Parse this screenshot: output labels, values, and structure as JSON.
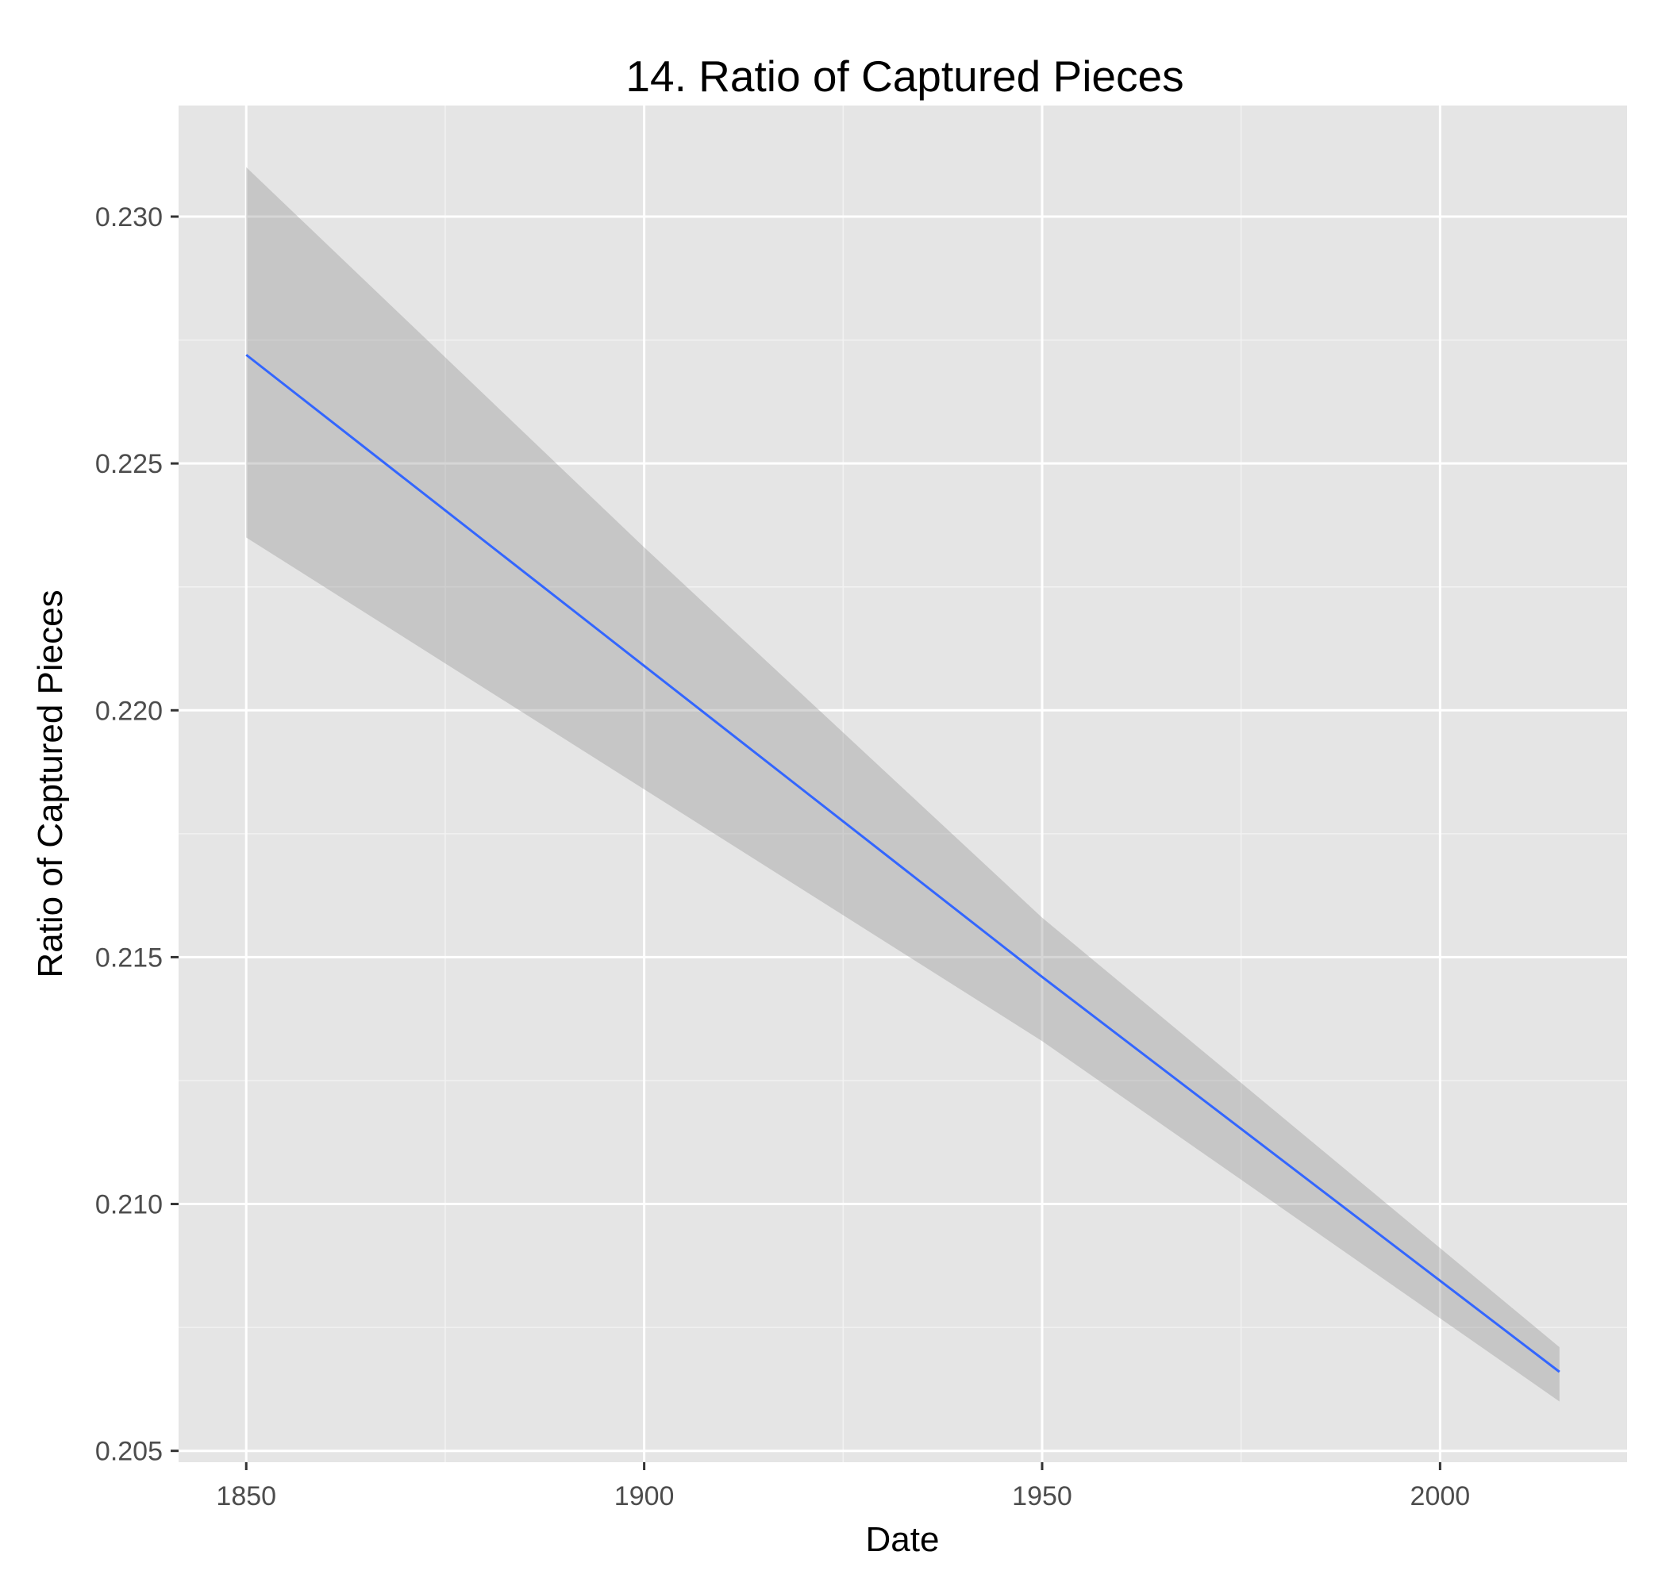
{
  "chart_data": {
    "type": "line",
    "title": "14. Ratio of Captured Pieces",
    "xlabel": "Date",
    "ylabel": "Ratio of Captured Pieces",
    "xlim": [
      1841.5,
      2023.5
    ],
    "ylim": [
      0.20477,
      0.23225
    ],
    "x_ticks": [
      1850,
      1900,
      1950,
      2000
    ],
    "x_tick_labels": [
      "1850",
      "1900",
      "1950",
      "2000"
    ],
    "y_ticks": [
      0.205,
      0.21,
      0.215,
      0.22,
      0.225,
      0.23
    ],
    "y_tick_labels": [
      "0.205",
      "0.210",
      "0.215",
      "0.220",
      "0.225",
      "0.230"
    ],
    "grid": true,
    "series": [
      {
        "color": "#3366ff",
        "x": [
          1850,
          1900,
          1950,
          2015
        ],
        "y": [
          0.2272,
          0.2209,
          0.2146,
          0.2066
        ],
        "ci_lower": [
          0.2235,
          0.2184,
          0.2133,
          0.206
        ],
        "ci_upper": [
          0.231,
          0.2233,
          0.2158,
          0.2071
        ]
      }
    ],
    "colors": {
      "panel_background": "#e5e5e5",
      "grid_major": "#ffffff",
      "grid_minor": "#f2f2f2",
      "confidence_band": "#999999"
    }
  }
}
